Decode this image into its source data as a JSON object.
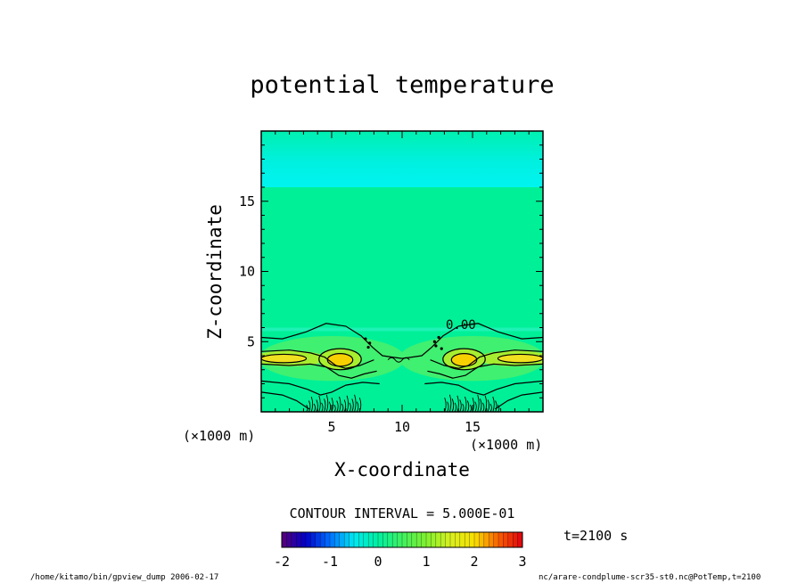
{
  "chart_data": {
    "type": "heatmap",
    "title": "potential temperature",
    "xlabel": "X-coordinate",
    "ylabel": "Z-coordinate",
    "x_unit": "(×1000 m)",
    "y_unit": "(×1000 m)",
    "xlim": [
      0,
      20
    ],
    "ylim": [
      0,
      20
    ],
    "x_ticks": [
      5,
      10,
      15
    ],
    "y_ticks": [
      5,
      10,
      15
    ],
    "contour_interval_label": "CONTOUR INTERVAL = 5.000E-01",
    "contour_label": "0.00",
    "colorbar": {
      "min": -2,
      "max": 3,
      "ticks": [
        "-2",
        "-1",
        "0",
        "1",
        "2",
        "3"
      ]
    },
    "time_label": "t=2100 s",
    "features": [
      {
        "desc": "warm core left",
        "x": 5.6,
        "z": 3.7,
        "value": 2.5
      },
      {
        "desc": "warm core right",
        "x": 13.9,
        "z": 3.7,
        "value": 2.5
      },
      {
        "desc": "warm layer left edge",
        "x": 1.5,
        "z": 3.8,
        "value": 1.8
      },
      {
        "desc": "warm layer right edge",
        "x": 18.5,
        "z": 3.8,
        "value": 1.8
      },
      {
        "desc": "cool band aloft",
        "x": 10,
        "z": 17.5,
        "value": -0.4
      }
    ]
  },
  "footer": {
    "left": "/home/kitamo/bin/gpview_dump  2006-02-17",
    "right": "nc/arare-condplume-scr35-st0.nc@PotTemp,t=2100"
  },
  "colors": {
    "background_field": "#00f098",
    "cool_band": "#00f0e8",
    "warm_outer": "#40f070",
    "warm_mid": "#a8ee30",
    "warm_inner": "#f0e020",
    "warm_core": "#f8d000"
  }
}
